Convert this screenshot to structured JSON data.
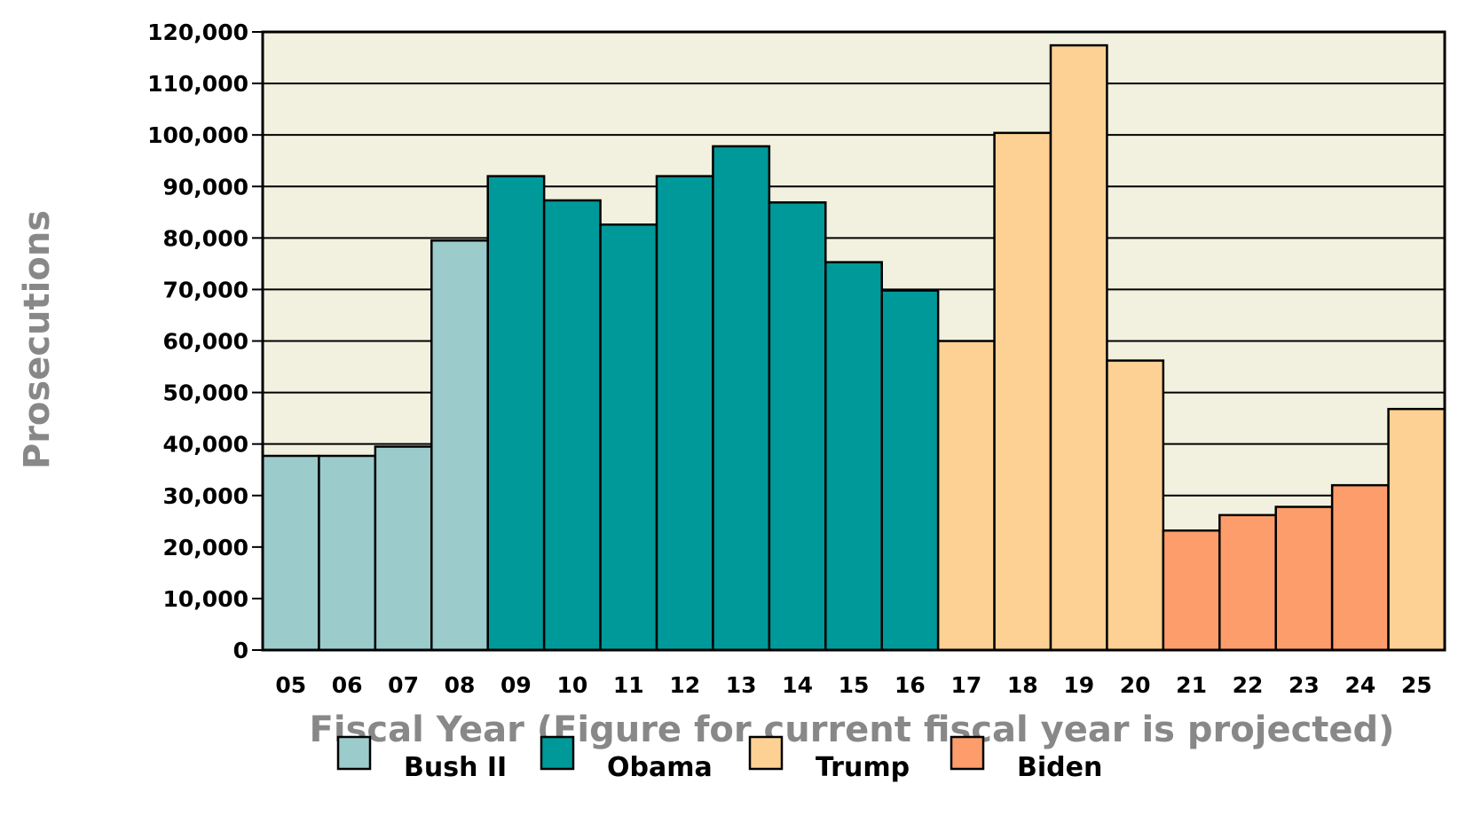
{
  "chart_data": {
    "type": "bar",
    "title": "",
    "xlabel": "Fiscal Year (Figure for current fiscal year is projected)",
    "ylabel": "Prosecutions",
    "ylim": [
      0,
      120000
    ],
    "yticks": [
      0,
      10000,
      20000,
      30000,
      40000,
      50000,
      60000,
      70000,
      80000,
      90000,
      100000,
      110000,
      120000
    ],
    "ytick_labels": [
      "0",
      "10,000",
      "20,000",
      "30,000",
      "40,000",
      "50,000",
      "60,000",
      "70,000",
      "80,000",
      "90,000",
      "100,000",
      "110,000",
      "120,000"
    ],
    "grid": true,
    "legend_position": "bottom",
    "categories": [
      "05",
      "06",
      "07",
      "08",
      "09",
      "10",
      "11",
      "12",
      "13",
      "14",
      "15",
      "16",
      "17",
      "18",
      "19",
      "20",
      "21",
      "22",
      "23",
      "24",
      "25"
    ],
    "values": [
      37700,
      37700,
      39500,
      79500,
      92000,
      87300,
      82600,
      92000,
      97800,
      86900,
      75300,
      69800,
      60000,
      100400,
      117400,
      56200,
      23200,
      26200,
      27800,
      32000,
      46800
    ],
    "groups": [
      "Bush II",
      "Bush II",
      "Bush II",
      "Bush II",
      "Obama",
      "Obama",
      "Obama",
      "Obama",
      "Obama",
      "Obama",
      "Obama",
      "Obama",
      "Trump",
      "Trump",
      "Trump",
      "Trump",
      "Biden",
      "Biden",
      "Biden",
      "Biden",
      "Trump"
    ],
    "legend": [
      {
        "name": "Bush II",
        "color": "#9ccbcc"
      },
      {
        "name": "Obama",
        "color": "#009999"
      },
      {
        "name": "Trump",
        "color": "#fcd193"
      },
      {
        "name": "Biden",
        "color": "#fd9d6b"
      }
    ],
    "plot_background": "#f2f1df"
  }
}
